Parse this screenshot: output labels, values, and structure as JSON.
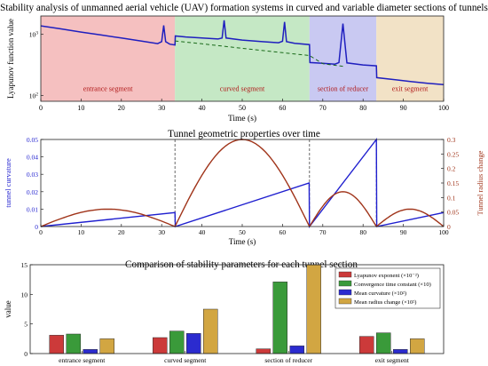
{
  "chart_data": [
    {
      "type": "line",
      "title": "Stability analysis of unmanned aerial vehicle (UAV) formation systems in curved and variable diameter sections of tunnels",
      "xlabel": "Time (s)",
      "ylabel": "Lyapunov function value",
      "xlim": [
        0,
        100
      ],
      "ylim": [
        80,
        2000
      ],
      "yscale": "log",
      "xticks": [
        "0",
        "10",
        "20",
        "30",
        "40",
        "50",
        "60",
        "70",
        "80",
        "90",
        "100"
      ],
      "yticks": [
        {
          "v": 100,
          "label": "10^2"
        },
        {
          "v": 1000,
          "label": "10^3"
        }
      ],
      "regions": [
        {
          "label": "entrance segment",
          "x0": 0,
          "x1": 33.3,
          "color": "#f4b9b9"
        },
        {
          "label": "curved segment",
          "x0": 33.3,
          "x1": 66.7,
          "color": "#bfe6bf"
        },
        {
          "label": "section of reducer",
          "x0": 66.7,
          "x1": 83.3,
          "color": "#c3c3f1"
        },
        {
          "label": "exit segment",
          "x0": 83.3,
          "x1": 100,
          "color": "#f1dfc0"
        }
      ],
      "series": [
        {
          "style": "solid",
          "color": "#1f1fbf",
          "points": [
            [
              0,
              1380
            ],
            [
              5,
              1230
            ],
            [
              10,
              1090
            ],
            [
              15,
              975
            ],
            [
              20,
              870
            ],
            [
              25,
              775
            ],
            [
              29,
              705
            ],
            [
              30,
              760
            ],
            [
              30.5,
              1400
            ],
            [
              31,
              760
            ],
            [
              32,
              690
            ],
            [
              33.3,
              670
            ],
            [
              33.4,
              940
            ],
            [
              36,
              905
            ],
            [
              40,
              870
            ],
            [
              44,
              840
            ],
            [
              45,
              870
            ],
            [
              45.5,
              1700
            ],
            [
              46,
              870
            ],
            [
              50,
              805
            ],
            [
              55,
              760
            ],
            [
              59,
              730
            ],
            [
              60,
              770
            ],
            [
              60.5,
              1600
            ],
            [
              61,
              760
            ],
            [
              63,
              715
            ],
            [
              66.7,
              680
            ],
            [
              66.8,
              345
            ],
            [
              70,
              335
            ],
            [
              73,
              325
            ],
            [
              74,
              345
            ],
            [
              75,
              1500
            ],
            [
              76,
              340
            ],
            [
              80,
              315
            ],
            [
              83.3,
              305
            ],
            [
              83.4,
              195
            ],
            [
              88,
              180
            ],
            [
              92,
              168
            ],
            [
              96,
              158
            ],
            [
              100,
              150
            ]
          ]
        },
        {
          "style": "dashed",
          "color": "#1a6a1a",
          "points": [
            [
              33.3,
              780
            ],
            [
              40,
              700
            ],
            [
              50,
              590
            ],
            [
              60,
              500
            ],
            [
              66.7,
              450
            ],
            [
              70,
              330
            ],
            [
              75,
              300
            ]
          ]
        }
      ]
    },
    {
      "type": "line",
      "title": "Tunnel geometric properties over time",
      "xlabel": "Time (s)",
      "ylabel": "tunnel curvature",
      "y2label": "Tunnel radius change",
      "xlim": [
        0,
        100
      ],
      "ylim": [
        0,
        0.05
      ],
      "y2lim": [
        0,
        0.3
      ],
      "xticks": [
        "0",
        "10",
        "20",
        "30",
        "40",
        "50",
        "60",
        "70",
        "80",
        "90",
        "100"
      ],
      "yticks": [
        "0",
        "0.01",
        "0.02",
        "0.03",
        "0.04",
        "0.05"
      ],
      "y2ticks": [
        "0",
        "0.05",
        "0.1",
        "0.15",
        "0.2",
        "0.25",
        "0.3"
      ],
      "vlines": [
        33.3,
        66.7,
        83.3
      ],
      "series": [
        {
          "axis": "left",
          "color": "#1f1fcf",
          "points": [
            [
              0,
              0
            ],
            [
              33.3,
              0.008
            ],
            [
              33.4,
              0
            ],
            [
              66.6,
              0.025
            ],
            [
              66.7,
              0
            ],
            [
              83.3,
              0.05
            ],
            [
              83.4,
              0
            ],
            [
              100,
              0.008
            ]
          ]
        },
        {
          "axis": "right",
          "color": "#a0341a",
          "segments": [
            {
              "x0": 0,
              "x1": 33.3,
              "peak": 0.06
            },
            {
              "x0": 33.3,
              "x1": 66.7,
              "peak": 0.3
            },
            {
              "x0": 66.7,
              "x1": 83.3,
              "peak": 0.12
            },
            {
              "x0": 83.3,
              "x1": 100,
              "peak": 0.06
            }
          ]
        }
      ]
    },
    {
      "type": "bar",
      "title": "Comparison of stability parameters for each tunnel section",
      "ylabel": "value",
      "ylim": [
        0,
        15
      ],
      "yticks": [
        "0",
        "5",
        "10",
        "15"
      ],
      "categories": [
        "entrance segment",
        "curved segment",
        "section of reducer",
        "exit segment"
      ],
      "series": [
        {
          "name": "Lyapunov exponent (×10⁻²)",
          "color": "#cc3a3a",
          "values": [
            3.1,
            2.7,
            0.8,
            2.9
          ]
        },
        {
          "name": "Convergence time constant (×10)",
          "color": "#3a9a3a",
          "values": [
            3.3,
            3.8,
            12.1,
            3.5
          ]
        },
        {
          "name": "Mean curvature (×10²)",
          "color": "#2b2bcf",
          "values": [
            0.7,
            3.4,
            1.3,
            0.7
          ]
        },
        {
          "name": "Mean radius change (×10²)",
          "color": "#d2a642",
          "values": [
            2.5,
            7.5,
            15.0,
            2.5
          ]
        }
      ],
      "legend": "top-right"
    }
  ]
}
